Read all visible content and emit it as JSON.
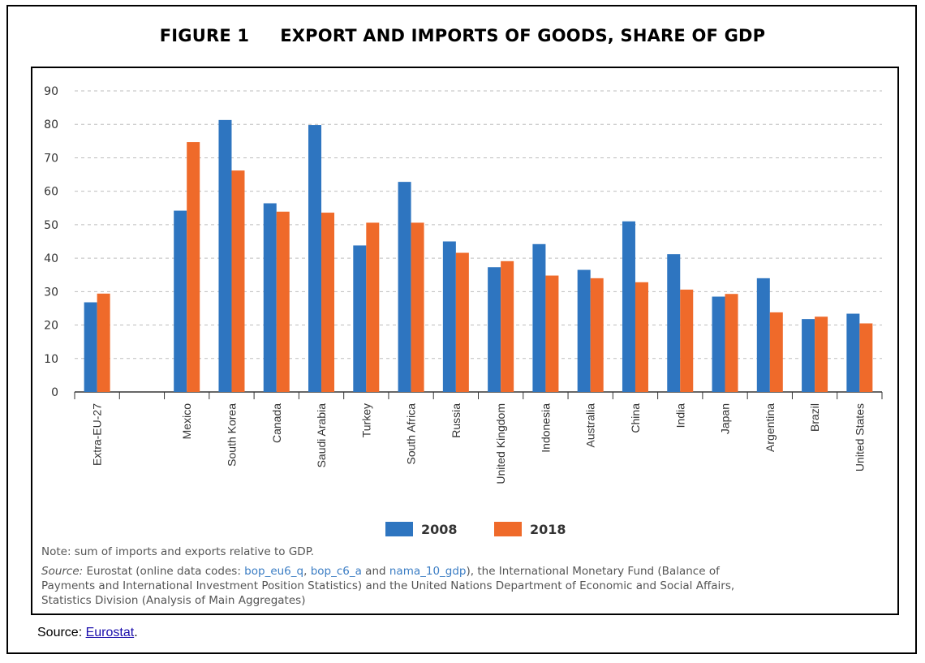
{
  "figure": {
    "number": "FIGURE 1",
    "title": "EXPORT AND IMPORTS OF GOODS, SHARE OF GDP"
  },
  "chart_data": {
    "type": "bar",
    "categories": [
      "Extra-EU-27",
      "",
      "Mexico",
      "South Korea",
      "Canada",
      "Saudi Arabia",
      "Turkey",
      "South Africa",
      "Russia",
      "United Kingdom",
      "Indonesia",
      "Australia",
      "China",
      "India",
      "Japan",
      "Argentina",
      "Brazil",
      "United States"
    ],
    "series": [
      {
        "name": "2008",
        "color": "#2e75c0",
        "values": [
          26.8,
          null,
          54.2,
          81.3,
          56.4,
          79.8,
          43.8,
          62.8,
          45.0,
          37.3,
          44.2,
          36.5,
          51.0,
          41.2,
          28.5,
          34.0,
          21.8,
          23.4
        ]
      },
      {
        "name": "2018",
        "color": "#ef6a2a",
        "values": [
          29.4,
          null,
          74.7,
          66.2,
          53.9,
          53.6,
          50.6,
          50.6,
          41.6,
          39.1,
          34.8,
          34.0,
          32.8,
          30.6,
          29.3,
          23.8,
          22.5,
          20.5
        ]
      }
    ],
    "ylim": [
      0,
      90
    ],
    "yticks": [
      "0",
      "10",
      "20",
      "30",
      "40",
      "50",
      "60",
      "70",
      "80",
      "90"
    ],
    "grid": true,
    "legend_position": "bottom-center"
  },
  "note": "Note: sum of imports and exports relative to GDP.",
  "source_block": {
    "label": "Source:",
    "text_before": " Eurostat (online data codes: ",
    "code1": "bop_eu6_q",
    "sep1": ", ",
    "code2": "bop_c6_a",
    "sep2": " and ",
    "code3": "nama_10_gdp",
    "text_after": "), the International Monetary Fund (Balance of Payments and International Investment Position Statistics) and the United Nations Department of Economic and Social Affairs, Statistics Division (Analysis of Main Aggregates)"
  },
  "outer_source": {
    "label": "Source: ",
    "link": "Eurostat",
    "suffix": "."
  }
}
